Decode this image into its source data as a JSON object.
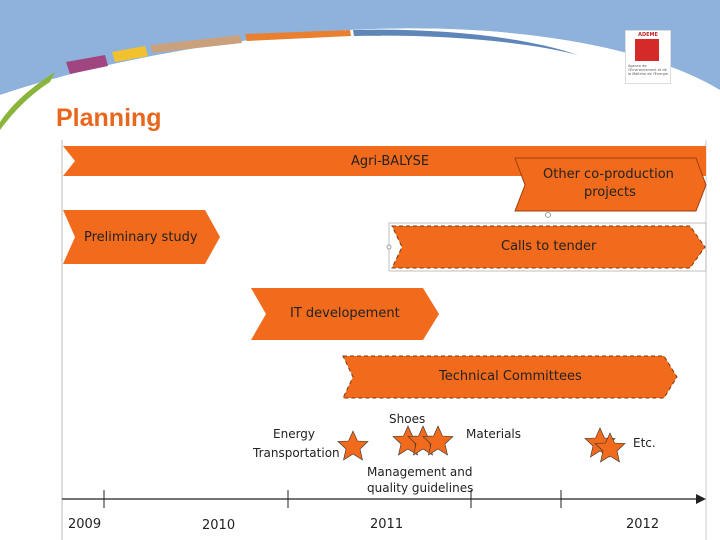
{
  "title": "Planning",
  "logo": {
    "name": "ADEME",
    "subtitle": "Agence de l'Environnement et de la Maîtrise de l'Énergie"
  },
  "bars": {
    "agri_balyse": "Agri-BALYSE",
    "other_coproduction": [
      "Other co-production",
      "projects"
    ],
    "preliminary_study": "Preliminary study",
    "calls_to_tender": "Calls to tender",
    "it_development": "IT developement",
    "technical_committees": "Technical Committees"
  },
  "milestones": {
    "energy": "Energy",
    "transportation": "Transportation",
    "shoes": "Shoes",
    "materials": "Materials",
    "management": [
      "Management and",
      "quality guidelines"
    ],
    "etc": "Etc."
  },
  "timeline": {
    "years": [
      "2009",
      "2010",
      "2011",
      "2012"
    ]
  },
  "colors": {
    "accent": "#f26a1b",
    "title": "#e8671c",
    "banner_blue": "#8fb2dd",
    "stripe_green": "#8bb43c",
    "stripe_purple": "#a0457f",
    "stripe_yellow": "#f2c12e",
    "stripe_tan": "#c9a27d",
    "stripe_orange": "#e8802f"
  }
}
